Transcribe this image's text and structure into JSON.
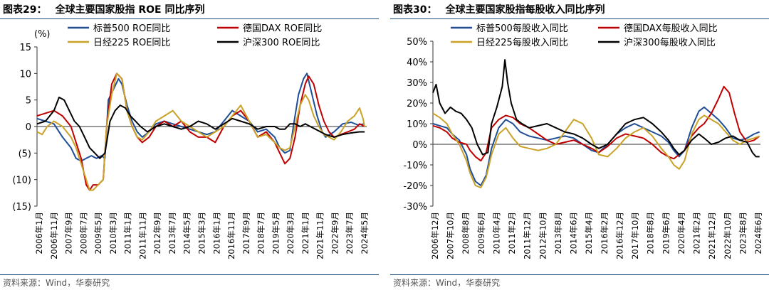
{
  "panels": [
    {
      "figure_label": "图表29：",
      "title_text": "全球主要国家股指 ROE 同比序列",
      "source_text": "资料来源：Wind，华泰研究",
      "chart_data": {
        "type": "line",
        "title": "全球主要国家股指 ROE 同比序列",
        "unit_label": "(%)",
        "ylim": [
          -15,
          15
        ],
        "yticks": [
          15,
          10,
          5,
          0,
          -5,
          -10,
          -15
        ],
        "ytick_labels": [
          "15",
          "10",
          "5",
          "0",
          "(5)",
          "(10)",
          "(15)"
        ],
        "xlim": [
          2006.0,
          2025.42
        ],
        "xtick_labels": [
          "2006年1月",
          "2006年11月",
          "2007年9月",
          "2008年7月",
          "2009年5月",
          "2010年3月",
          "2011年1月",
          "2011年11月",
          "2012年9月",
          "2013年7月",
          "2014年5月",
          "2015年3月",
          "2016年1月",
          "2016年11月",
          "2017年9月",
          "2018年7月",
          "2019年5月",
          "2020年3月",
          "2021年1月",
          "2021年11月",
          "2022年9月",
          "2023年7月",
          "2024年5月"
        ],
        "legend": "top",
        "grid": false,
        "series": [
          {
            "name": "标普500 ROE同比",
            "color": "#1f4e96",
            "x": [
              2006.0,
              2006.5,
              2007.0,
              2007.5,
              2008.0,
              2008.3,
              2008.6,
              2008.9,
              2009.2,
              2009.5,
              2009.8,
              2010.0,
              2010.2,
              2010.5,
              2010.8,
              2011.0,
              2011.3,
              2011.6,
              2011.9,
              2012.2,
              2012.6,
              2013.0,
              2013.5,
              2014.0,
              2014.5,
              2015.0,
              2015.5,
              2016.0,
              2016.5,
              2017.0,
              2017.5,
              2018.0,
              2018.5,
              2019.0,
              2019.5,
              2020.0,
              2020.3,
              2020.6,
              2020.9,
              2021.1,
              2021.4,
              2021.7,
              2021.9,
              2022.2,
              2022.5,
              2022.8,
              2023.0,
              2023.5,
              2024.0,
              2024.5,
              2024.9,
              2025.3
            ],
            "y": [
              1.5,
              1,
              0.5,
              -2,
              -4,
              -6,
              -6.5,
              -6,
              -5.5,
              -6,
              -5.5,
              -6,
              5,
              7,
              9,
              8,
              4,
              1,
              -1,
              -2,
              -1,
              0.5,
              1,
              0.5,
              0,
              -0.5,
              -1,
              -1.5,
              -1,
              1,
              3,
              2,
              1,
              -1,
              -0.5,
              -2,
              -4,
              -5,
              -4.5,
              0,
              6,
              9,
              10,
              6,
              2,
              -1,
              -2,
              -1,
              0.5,
              0.8,
              0.3,
              0.5
            ]
          },
          {
            "name": "德国DAX ROE同比",
            "color": "#c00000",
            "x": [
              2006.0,
              2006.5,
              2007.0,
              2007.5,
              2008.0,
              2008.3,
              2008.6,
              2008.9,
              2009.1,
              2009.3,
              2009.6,
              2009.9,
              2010.1,
              2010.4,
              2010.7,
              2011.0,
              2011.3,
              2011.6,
              2011.9,
              2012.2,
              2012.6,
              2013.0,
              2013.5,
              2014.0,
              2014.5,
              2015.0,
              2015.5,
              2016.0,
              2016.5,
              2017.0,
              2017.5,
              2018.0,
              2018.5,
              2019.0,
              2019.5,
              2020.0,
              2020.3,
              2020.6,
              2020.9,
              2021.2,
              2021.5,
              2021.8,
              2022.0,
              2022.3,
              2022.6,
              2022.9,
              2023.2,
              2023.5,
              2023.9,
              2024.3,
              2024.7,
              2025.0,
              2025.3
            ],
            "y": [
              2,
              2.5,
              3,
              2,
              0,
              -3,
              -6,
              -11,
              -12,
              -11,
              -11,
              -10,
              0,
              8,
              10,
              9,
              3,
              0,
              -2,
              -3,
              -2,
              0,
              1,
              0,
              1,
              -1,
              -2,
              -2,
              -3,
              0,
              2,
              3,
              1,
              -2,
              -1,
              -3,
              -5,
              -7,
              -6,
              -2,
              4,
              8,
              9.5,
              8,
              4,
              1,
              -1,
              -2,
              -1.5,
              -1,
              -0.5,
              0.5,
              0
            ]
          },
          {
            "name": "日经225 ROE同比",
            "color": "#c9a227",
            "x": [
              2006.0,
              2006.3,
              2006.6,
              2007.0,
              2007.5,
              2008.0,
              2008.3,
              2008.6,
              2008.9,
              2009.1,
              2009.3,
              2009.6,
              2009.9,
              2010.1,
              2010.4,
              2010.7,
              2011.0,
              2011.3,
              2011.6,
              2011.9,
              2012.2,
              2012.6,
              2013.0,
              2013.5,
              2014.0,
              2014.5,
              2015.0,
              2015.5,
              2016.0,
              2016.5,
              2017.0,
              2017.5,
              2018.0,
              2018.5,
              2019.0,
              2019.5,
              2020.0,
              2020.3,
              2020.6,
              2020.9,
              2021.2,
              2021.5,
              2021.8,
              2022.0,
              2022.3,
              2022.6,
              2022.9,
              2023.2,
              2023.5,
              2023.9,
              2024.3,
              2024.7,
              2025.0,
              2025.2,
              2025.3
            ],
            "y": [
              -1,
              -1.5,
              0,
              1,
              0,
              -2,
              -4,
              -7,
              -10,
              -12,
              -12,
              -11,
              -10,
              0,
              6,
              10,
              9,
              3,
              0,
              -2,
              -2.5,
              -1,
              1,
              2,
              3,
              1,
              0,
              -1,
              -2,
              -1,
              0,
              2,
              4,
              1,
              -2,
              -1.5,
              -3,
              -4,
              -4.5,
              -4,
              0,
              4,
              6,
              5,
              2,
              0,
              -1.5,
              -2,
              -2.5,
              -1,
              1,
              2,
              3.5,
              1.5,
              0
            ]
          },
          {
            "name": "沪深300 ROE同比",
            "color": "#000000",
            "x": [
              2006.0,
              2006.5,
              2007.0,
              2007.3,
              2007.6,
              2007.9,
              2008.2,
              2008.5,
              2008.8,
              2009.1,
              2009.4,
              2009.7,
              2010.0,
              2010.3,
              2010.6,
              2010.9,
              2011.2,
              2011.5,
              2011.8,
              2012.1,
              2012.5,
              2013.0,
              2013.5,
              2014.0,
              2014.5,
              2015.0,
              2015.5,
              2016.0,
              2016.5,
              2017.0,
              2017.5,
              2018.0,
              2018.5,
              2019.0,
              2019.5,
              2020.0,
              2020.3,
              2020.6,
              2020.9,
              2021.2,
              2021.5,
              2021.8,
              2022.1,
              2022.4,
              2022.7,
              2023.0,
              2023.5,
              2024.0,
              2024.5,
              2025.0,
              2025.3
            ],
            "y": [
              0.5,
              1,
              3,
              5.5,
              5,
              3,
              1,
              0,
              -2,
              -4,
              -5,
              -6,
              -5,
              1,
              3,
              4,
              3.5,
              2,
              1,
              0,
              -1,
              0,
              0.5,
              0,
              -0.5,
              0,
              1,
              0.5,
              -0.5,
              0.5,
              1.5,
              1,
              0.5,
              -0.5,
              0,
              0,
              -0.5,
              -0.5,
              0.5,
              0.5,
              0,
              0.5,
              0,
              -0.5,
              -1,
              -1.5,
              -2,
              -1.5,
              -1.2,
              -1,
              -1
            ]
          }
        ]
      }
    },
    {
      "figure_label": "图表30：",
      "title_text": "全球主要国家股指每股收入同比序列",
      "source_text": "资料来源：Wind，华泰研究",
      "chart_data": {
        "type": "line",
        "title": "全球主要国家股指每股收入同比序列",
        "ylim": [
          -30,
          50
        ],
        "yticks": [
          50,
          40,
          30,
          20,
          10,
          0,
          -10,
          -20,
          -30
        ],
        "ytick_labels": [
          "50%",
          "40%",
          "30%",
          "20%",
          "10%",
          "0%",
          "-10%",
          "-20%",
          "-30%"
        ],
        "xlim": [
          2006.92,
          2025.25
        ],
        "xtick_labels": [
          "2006年12月",
          "2007年10月",
          "2008年8月",
          "2009年6月",
          "2010年4月",
          "2011年2月",
          "2011年12月",
          "2012年10月",
          "2013年8月",
          "2014年6月",
          "2015年4月",
          "2016年2月",
          "2016年12月",
          "2017年10月",
          "2018年8月",
          "2019年6月",
          "2020年4月",
          "2021年2月",
          "2021年12月",
          "2022年10月",
          "2023年8月",
          "2024年6月"
        ],
        "legend": "top",
        "grid": false,
        "series": [
          {
            "name": "标普500每股收入同比",
            "color": "#1f4e96",
            "x": [
              2006.92,
              2007.3,
              2007.7,
              2008.0,
              2008.4,
              2008.8,
              2009.0,
              2009.3,
              2009.6,
              2009.9,
              2010.2,
              2010.6,
              2011.0,
              2011.4,
              2011.8,
              2012.3,
              2012.8,
              2013.3,
              2013.8,
              2014.3,
              2014.8,
              2015.3,
              2015.8,
              2016.2,
              2016.7,
              2017.2,
              2017.7,
              2018.2,
              2018.7,
              2019.2,
              2019.7,
              2020.1,
              2020.4,
              2020.7,
              2021.0,
              2021.4,
              2021.8,
              2022.1,
              2022.5,
              2022.9,
              2023.3,
              2023.7,
              2024.1,
              2024.5,
              2024.9,
              2025.2
            ],
            "y": [
              10,
              9,
              8,
              5,
              2,
              -5,
              -12,
              -18,
              -20,
              -15,
              -2,
              8,
              12,
              10,
              6,
              4,
              3,
              2,
              3,
              4,
              3,
              0,
              -3,
              -4,
              0,
              5,
              8,
              10,
              8,
              6,
              4,
              1,
              -3,
              -6,
              -3,
              8,
              16,
              18,
              15,
              12,
              8,
              3,
              2,
              3,
              5,
              6
            ]
          },
          {
            "name": "德国DAX每股收入同比",
            "color": "#c00000",
            "x": [
              2006.92,
              2007.3,
              2007.7,
              2008.0,
              2008.4,
              2008.8,
              2009.0,
              2009.3,
              2009.6,
              2009.9,
              2010.2,
              2010.6,
              2011.0,
              2011.4,
              2011.8,
              2012.3,
              2012.8,
              2013.3,
              2013.8,
              2014.3,
              2014.8,
              2015.3,
              2015.8,
              2016.2,
              2016.7,
              2017.2,
              2017.7,
              2018.2,
              2018.7,
              2019.2,
              2019.7,
              2020.1,
              2020.4,
              2020.7,
              2021.0,
              2021.4,
              2021.8,
              2022.1,
              2022.5,
              2022.9,
              2023.2,
              2023.5,
              2023.8,
              2024.1,
              2024.5,
              2024.9,
              2025.2
            ],
            "y": [
              9,
              8,
              6,
              3,
              1,
              0,
              -3,
              -6,
              -8,
              -4,
              8,
              12,
              14,
              13,
              10,
              8,
              5,
              2,
              0,
              1,
              2,
              0,
              -2,
              -4,
              -1,
              3,
              5,
              4,
              3,
              0,
              -4,
              -6,
              -7,
              -5,
              -3,
              4,
              8,
              10,
              15,
              22,
              28,
              25,
              15,
              6,
              1,
              2,
              4
            ]
          },
          {
            "name": "日经225每股收入同比",
            "color": "#c9a227",
            "x": [
              2006.92,
              2007.3,
              2007.7,
              2008.0,
              2008.4,
              2008.8,
              2009.0,
              2009.3,
              2009.6,
              2009.9,
              2010.2,
              2010.6,
              2011.0,
              2011.4,
              2011.8,
              2012.3,
              2012.8,
              2013.3,
              2013.8,
              2014.3,
              2014.8,
              2015.3,
              2015.8,
              2016.2,
              2016.7,
              2017.2,
              2017.7,
              2018.2,
              2018.7,
              2019.2,
              2019.7,
              2020.1,
              2020.4,
              2020.7,
              2021.0,
              2021.4,
              2021.8,
              2022.1,
              2022.5,
              2022.9,
              2023.3,
              2023.7,
              2024.1,
              2024.5,
              2024.9,
              2025.2
            ],
            "y": [
              15,
              13,
              10,
              5,
              0,
              -8,
              -14,
              -20,
              -21,
              -16,
              -5,
              5,
              8,
              3,
              -1,
              -2,
              -3,
              -2,
              0,
              6,
              12,
              10,
              3,
              -5,
              -6,
              -2,
              3,
              6,
              8,
              4,
              -2,
              -6,
              -10,
              -12,
              -8,
              5,
              12,
              14,
              12,
              10,
              6,
              2,
              0,
              2,
              3,
              4
            ]
          },
          {
            "name": "沪深300每股收入同比",
            "color": "#000000",
            "x": [
              2006.92,
              2007.1,
              2007.3,
              2007.6,
              2007.9,
              2008.2,
              2008.5,
              2008.8,
              2009.1,
              2009.4,
              2009.7,
              2010.0,
              2010.2,
              2010.5,
              2010.8,
              2010.95,
              2011.1,
              2011.3,
              2011.6,
              2011.9,
              2012.3,
              2012.8,
              2013.3,
              2013.8,
              2014.3,
              2014.8,
              2015.3,
              2015.8,
              2016.2,
              2016.7,
              2017.2,
              2017.7,
              2018.2,
              2018.7,
              2019.2,
              2019.7,
              2020.1,
              2020.4,
              2020.7,
              2021.0,
              2021.4,
              2021.8,
              2022.1,
              2022.5,
              2022.9,
              2023.3,
              2023.7,
              2024.1,
              2024.5,
              2024.8,
              2025.0,
              2025.2
            ],
            "y": [
              25,
              29,
              20,
              15,
              18,
              16,
              15,
              12,
              8,
              0,
              -5,
              -4,
              10,
              18,
              28,
              41,
              30,
              20,
              12,
              10,
              8,
              9,
              10,
              8,
              6,
              5,
              3,
              0,
              -2,
              0,
              5,
              10,
              12,
              13,
              10,
              6,
              2,
              -2,
              -5,
              -3,
              2,
              5,
              3,
              0,
              1,
              3,
              4,
              2,
              1,
              -4,
              -6,
              -6
            ]
          }
        ]
      }
    }
  ]
}
